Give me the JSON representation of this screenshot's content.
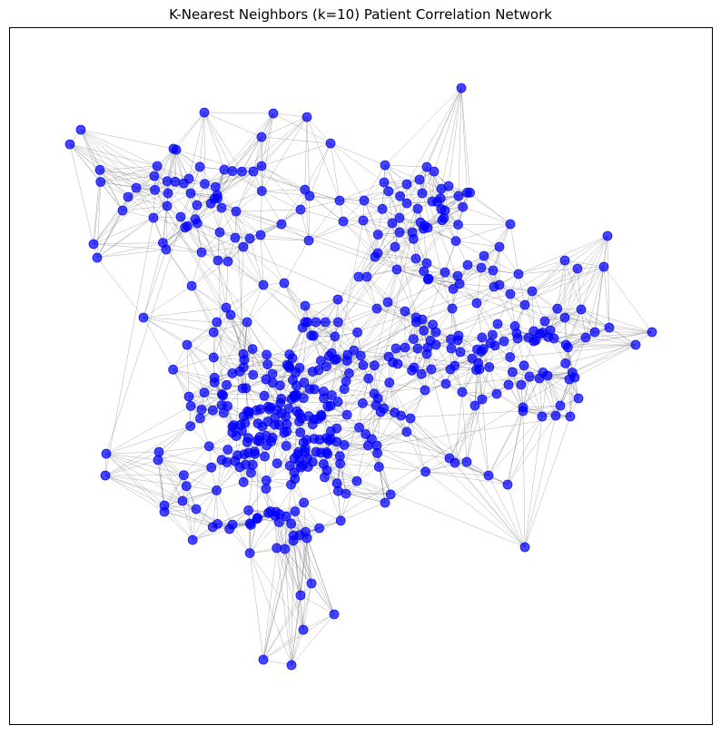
{
  "figure": {
    "title": "K-Nearest Neighbors (k=10) Patient Correlation Network"
  },
  "colors": {
    "node_fill": "#0000ff",
    "node_opacity": 0.72,
    "edge": "#555555",
    "edge_opacity": 0.45,
    "background": "#ffffff",
    "frame": "#000000"
  },
  "network": {
    "k": 10,
    "layout": "force-directed",
    "axes_visible": false
  }
}
